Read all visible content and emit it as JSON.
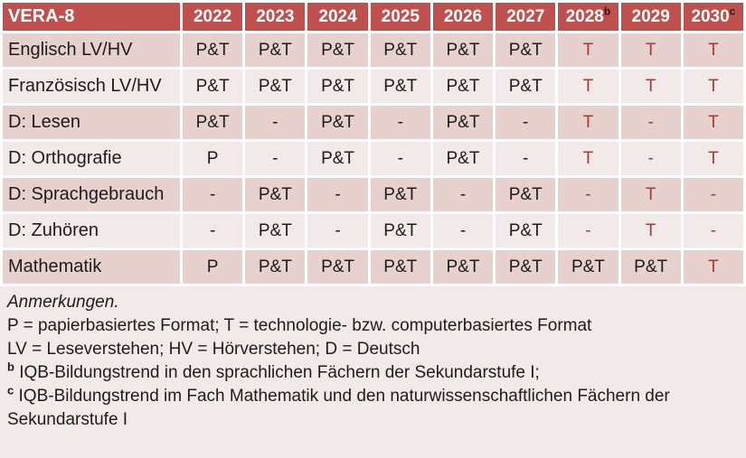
{
  "colors": {
    "header_bg": "#C0504D",
    "header_text": "#FFFFFF",
    "band_dark": "#E7D1CF",
    "band_light": "#F2EAE8",
    "notes_bg": "#F2EAE8",
    "accent_red": "#A03C39",
    "text_black": "#1C1C1C",
    "grid_white": "#FFFFFF"
  },
  "table": {
    "title": "VERA-8",
    "columns": [
      {
        "label": "2022",
        "sup": ""
      },
      {
        "label": "2023",
        "sup": ""
      },
      {
        "label": "2024",
        "sup": ""
      },
      {
        "label": "2025",
        "sup": ""
      },
      {
        "label": "2026",
        "sup": ""
      },
      {
        "label": "2027",
        "sup": ""
      },
      {
        "label": "2028",
        "sup": "b"
      },
      {
        "label": "2029",
        "sup": ""
      },
      {
        "label": "2030",
        "sup": "c"
      }
    ],
    "rows": [
      {
        "label": "Englisch LV/HV",
        "cells": [
          {
            "text": "P&T",
            "red": false
          },
          {
            "text": "P&T",
            "red": false
          },
          {
            "text": "P&T",
            "red": false
          },
          {
            "text": "P&T",
            "red": false
          },
          {
            "text": "P&T",
            "red": false
          },
          {
            "text": "P&T",
            "red": false
          },
          {
            "text": "T",
            "red": true
          },
          {
            "text": "T",
            "red": true
          },
          {
            "text": "T",
            "red": true
          }
        ]
      },
      {
        "label": "Französisch LV/HV",
        "cells": [
          {
            "text": "P&T",
            "red": false
          },
          {
            "text": "P&T",
            "red": false
          },
          {
            "text": "P&T",
            "red": false
          },
          {
            "text": "P&T",
            "red": false
          },
          {
            "text": "P&T",
            "red": false
          },
          {
            "text": "P&T",
            "red": false
          },
          {
            "text": "T",
            "red": true
          },
          {
            "text": "T",
            "red": true
          },
          {
            "text": "T",
            "red": true
          }
        ]
      },
      {
        "label": "D: Lesen",
        "cells": [
          {
            "text": "P&T",
            "red": false
          },
          {
            "text": "-",
            "red": false
          },
          {
            "text": "P&T",
            "red": false
          },
          {
            "text": "-",
            "red": false
          },
          {
            "text": "P&T",
            "red": false
          },
          {
            "text": "-",
            "red": false
          },
          {
            "text": "T",
            "red": true
          },
          {
            "text": "-",
            "red": true
          },
          {
            "text": "T",
            "red": true
          }
        ]
      },
      {
        "label": "D: Orthografie",
        "cells": [
          {
            "text": "P",
            "red": false
          },
          {
            "text": "-",
            "red": false
          },
          {
            "text": "P&T",
            "red": false
          },
          {
            "text": "-",
            "red": false
          },
          {
            "text": "P&T",
            "red": false
          },
          {
            "text": "-",
            "red": false
          },
          {
            "text": "T",
            "red": true
          },
          {
            "text": "-",
            "red": true
          },
          {
            "text": "T",
            "red": true
          }
        ]
      },
      {
        "label": "D: Sprachgebrauch",
        "cells": [
          {
            "text": "-",
            "red": false
          },
          {
            "text": "P&T",
            "red": false
          },
          {
            "text": "-",
            "red": false
          },
          {
            "text": "P&T",
            "red": false
          },
          {
            "text": "-",
            "red": false
          },
          {
            "text": "P&T",
            "red": false
          },
          {
            "text": "-",
            "red": true
          },
          {
            "text": "T",
            "red": true
          },
          {
            "text": "-",
            "red": true
          }
        ]
      },
      {
        "label": "D: Zuhören",
        "cells": [
          {
            "text": "-",
            "red": false
          },
          {
            "text": "P&T",
            "red": false
          },
          {
            "text": "-",
            "red": false
          },
          {
            "text": "P&T",
            "red": false
          },
          {
            "text": "-",
            "red": false
          },
          {
            "text": "P&T",
            "red": false
          },
          {
            "text": "-",
            "red": true
          },
          {
            "text": "T",
            "red": true
          },
          {
            "text": "-",
            "red": true
          }
        ]
      },
      {
        "label": "Mathematik",
        "cells": [
          {
            "text": "P",
            "red": false
          },
          {
            "text": "P&T",
            "red": false
          },
          {
            "text": "P&T",
            "red": false
          },
          {
            "text": "P&T",
            "red": false
          },
          {
            "text": "P&T",
            "red": false
          },
          {
            "text": "P&T",
            "red": false
          },
          {
            "text": "P&T",
            "red": false
          },
          {
            "text": "P&T",
            "red": false
          },
          {
            "text": "T",
            "red": true
          }
        ]
      }
    ]
  },
  "notes": {
    "heading": "Anmerkungen.",
    "lines": [
      {
        "sup": "",
        "text": "P = papierbasiertes Format; T = technologie- bzw. computerbasiertes Format"
      },
      {
        "sup": "",
        "text": "LV = Leseverstehen; HV = Hörverstehen; D = Deutsch"
      },
      {
        "sup": "b",
        "text": "IQB-Bildungstrend in den sprachlichen Fächern der Sekundarstufe I;"
      },
      {
        "sup": "c",
        "text": "IQB-Bildungstrend im Fach Mathematik und den naturwissenschaftlichen Fächern der Sekundarstufe I"
      }
    ]
  }
}
